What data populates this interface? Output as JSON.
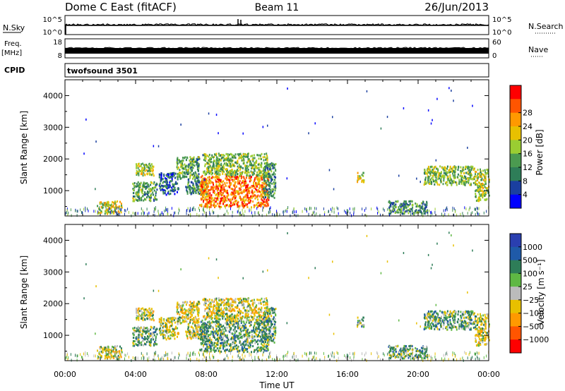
{
  "header": {
    "station": "Dome C East (fitACF)",
    "beam": "Beam 11",
    "date": "26/Jun/2013"
  },
  "strips": {
    "nsky_label": "N.Sky",
    "nsky_ticks": [
      "10^5",
      "10^0"
    ],
    "nsearch_label": "N.Search",
    "nsearch_ticks": [
      "10^5",
      "10^0"
    ],
    "freq_label": "Freq.",
    "freq_unit": "[MHz]",
    "freq_ticks": [
      "18",
      "8"
    ],
    "nave_label": "Nave",
    "nave_ticks": [
      "60",
      "0"
    ],
    "cpid_label": "CPID",
    "cpid_value": "twofsound 3501"
  },
  "colors": {
    "power": [
      "#0000ff",
      "#1a3fa0",
      "#2e7d58",
      "#4b9a50",
      "#9acd32",
      "#e8c000",
      "#ff9900",
      "#ff5500",
      "#ff0000"
    ],
    "velocity": [
      "#2a3fb0",
      "#1f5aa8",
      "#2e7d58",
      "#5fb844",
      "#bbbbbb",
      "#e8c000",
      "#ff9900",
      "#ff5500",
      "#ff0000"
    ]
  },
  "chart_data": [
    {
      "type": "heatmap",
      "parameter": "power",
      "xlabel": "",
      "ylabel": "Slant Range [km]",
      "xlim": [
        "00:00",
        "24:00"
      ],
      "ylim": [
        200,
        4500
      ],
      "y_ticks": [
        "1000",
        "2000",
        "3000",
        "4000"
      ],
      "colorbar_label": "Power [dB]",
      "colorbar_ticks": [
        "4",
        "8",
        "12",
        "16",
        "20",
        "24",
        "28"
      ],
      "regions": [
        {
          "t0": 1.8,
          "t1": 3.2,
          "r0": 300,
          "r1": 700,
          "value": 20
        },
        {
          "t0": 3.8,
          "t1": 5.2,
          "r0": 700,
          "r1": 1300,
          "value": 14
        },
        {
          "t0": 4.0,
          "t1": 5.0,
          "r0": 1500,
          "r1": 1900,
          "value": 18
        },
        {
          "t0": 5.3,
          "t1": 6.4,
          "r0": 900,
          "r1": 1600,
          "value": 8
        },
        {
          "t0": 6.3,
          "t1": 7.6,
          "r0": 1400,
          "r1": 2100,
          "value": 14
        },
        {
          "t0": 6.8,
          "t1": 8.0,
          "r0": 900,
          "r1": 1400,
          "value": 10
        },
        {
          "t0": 7.6,
          "t1": 11.5,
          "r0": 500,
          "r1": 1500,
          "value": 28
        },
        {
          "t0": 7.8,
          "t1": 11.5,
          "r0": 1500,
          "r1": 2200,
          "value": 16
        },
        {
          "t0": 11.2,
          "t1": 11.9,
          "r0": 800,
          "r1": 1900,
          "value": 12
        },
        {
          "t0": 16.5,
          "t1": 16.9,
          "r0": 1300,
          "r1": 1600,
          "value": 20
        },
        {
          "t0": 18.3,
          "t1": 20.5,
          "r0": 300,
          "r1": 700,
          "value": 12
        },
        {
          "t0": 20.3,
          "t1": 23.2,
          "r0": 1200,
          "r1": 1800,
          "value": 16
        },
        {
          "t0": 23.2,
          "t1": 24.0,
          "r0": 700,
          "r1": 1700,
          "value": 18
        }
      ]
    },
    {
      "type": "heatmap",
      "parameter": "velocity",
      "xlabel": "Time UT",
      "ylabel": "Slant Range [km]",
      "xlim": [
        "00:00",
        "24:00"
      ],
      "ylim": [
        200,
        4500
      ],
      "x_ticks": [
        "00:00",
        "04:00",
        "08:00",
        "12:00",
        "16:00",
        "20:00",
        "00:00"
      ],
      "y_ticks": [
        "1000",
        "2000",
        "3000",
        "4000"
      ],
      "colorbar_label": "Velocity [m s⁻¹]",
      "colorbar_ticks": [
        "1000",
        "500",
        "100",
        "25",
        "−25",
        "−100",
        "−500",
        "−1000"
      ],
      "regions": [
        {
          "t0": 1.8,
          "t1": 3.2,
          "r0": 300,
          "r1": 700,
          "value": -100
        },
        {
          "t0": 3.8,
          "t1": 5.2,
          "r0": 700,
          "r1": 1300,
          "value": 100
        },
        {
          "t0": 4.0,
          "t1": 5.0,
          "r0": 1500,
          "r1": 1900,
          "value": -100
        },
        {
          "t0": 5.3,
          "t1": 6.4,
          "r0": 900,
          "r1": 1600,
          "value": -100
        },
        {
          "t0": 6.3,
          "t1": 7.6,
          "r0": 1400,
          "r1": 2100,
          "value": -100
        },
        {
          "t0": 6.8,
          "t1": 8.0,
          "r0": 900,
          "r1": 1400,
          "value": -100
        },
        {
          "t0": 7.6,
          "t1": 11.5,
          "r0": 500,
          "r1": 1500,
          "value": 100
        },
        {
          "t0": 7.8,
          "t1": 11.5,
          "r0": 1500,
          "r1": 2200,
          "value": -100
        },
        {
          "t0": 11.2,
          "t1": 11.9,
          "r0": 800,
          "r1": 1900,
          "value": 100
        },
        {
          "t0": 16.5,
          "t1": 16.9,
          "r0": 1300,
          "r1": 1600,
          "value": 100
        },
        {
          "t0": 18.3,
          "t1": 20.5,
          "r0": 300,
          "r1": 700,
          "value": 100
        },
        {
          "t0": 20.3,
          "t1": 23.2,
          "r0": 1200,
          "r1": 1800,
          "value": 100
        },
        {
          "t0": 23.2,
          "t1": 24.0,
          "r0": 700,
          "r1": 1700,
          "value": -100
        }
      ]
    }
  ]
}
